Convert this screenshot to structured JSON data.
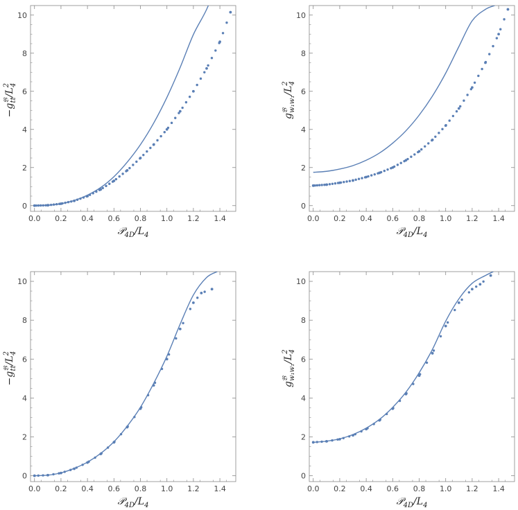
{
  "colors": {
    "series": "#5a7fb5",
    "frame": "#888888",
    "text": "#333333"
  },
  "chart_data": [
    {
      "type": "scatter",
      "title": "",
      "xlabel": "𝒫_{4D}/L_4",
      "ylabel": "−g^{𝔅}_{tt}/L_4^2",
      "xlim": [
        -0.03,
        1.52
      ],
      "ylim": [
        -0.3,
        10.5
      ],
      "xticks": [
        "0.0",
        "0.2",
        "0.4",
        "0.6",
        "0.8",
        "1.0",
        "1.2",
        "1.4"
      ],
      "yticks": [
        "0",
        "2",
        "4",
        "6",
        "8",
        "10"
      ],
      "grid": false,
      "series": [
        {
          "kind": "line",
          "x": [
            0,
            0.1,
            0.2,
            0.3,
            0.4,
            0.5,
            0.6,
            0.7,
            0.8,
            0.9,
            1.0,
            1.1,
            1.2,
            1.3,
            1.4
          ],
          "y": [
            0,
            0.02,
            0.1,
            0.27,
            0.55,
            0.95,
            1.52,
            2.28,
            3.2,
            4.33,
            5.68,
            7.25,
            8.98,
            10.3,
            12.0
          ]
        },
        {
          "kind": "points",
          "x": [
            0,
            0.1,
            0.2,
            0.3,
            0.4,
            0.5,
            0.6,
            0.7,
            0.8,
            0.9,
            1.0,
            1.1,
            1.2,
            1.3,
            1.4,
            1.48
          ],
          "y": [
            0,
            0.02,
            0.1,
            0.25,
            0.5,
            0.85,
            1.3,
            1.85,
            2.5,
            3.2,
            4.0,
            4.95,
            6.0,
            7.2,
            8.6,
            10.15
          ]
        }
      ]
    },
    {
      "type": "scatter",
      "title": "",
      "xlabel": "𝒫_{4D}/L_4",
      "ylabel": "g^{𝔅}_{w_1w_1}/L_4^2",
      "xlim": [
        -0.03,
        1.52
      ],
      "ylim": [
        -0.3,
        10.5
      ],
      "xticks": [
        "0.0",
        "0.2",
        "0.4",
        "0.6",
        "0.8",
        "1.0",
        "1.2",
        "1.4"
      ],
      "yticks": [
        "0",
        "2",
        "4",
        "6",
        "8",
        "10"
      ],
      "grid": false,
      "series": [
        {
          "kind": "line",
          "x": [
            0,
            0.1,
            0.2,
            0.3,
            0.4,
            0.5,
            0.6,
            0.7,
            0.8,
            0.9,
            1.0,
            1.1,
            1.2,
            1.3,
            1.37
          ],
          "y": [
            1.75,
            1.8,
            1.92,
            2.1,
            2.38,
            2.76,
            3.28,
            3.93,
            4.75,
            5.75,
            6.95,
            8.35,
            9.7,
            10.3,
            10.5
          ]
        },
        {
          "kind": "points",
          "x": [
            0,
            0.1,
            0.2,
            0.3,
            0.4,
            0.5,
            0.6,
            0.7,
            0.8,
            0.9,
            1.0,
            1.1,
            1.2,
            1.3,
            1.4,
            1.47
          ],
          "y": [
            1.05,
            1.1,
            1.2,
            1.32,
            1.5,
            1.72,
            2.0,
            2.38,
            2.85,
            3.45,
            4.2,
            5.1,
            6.2,
            7.5,
            9.0,
            10.3
          ]
        }
      ]
    },
    {
      "type": "scatter",
      "title": "",
      "xlabel": "𝒫_{4D}/L_4",
      "ylabel": "−g^{𝔅}_{tt}/L_4^2",
      "xlim": [
        -0.03,
        1.52
      ],
      "ylim": [
        -0.3,
        10.5
      ],
      "xticks": [
        "0.0",
        "0.2",
        "0.4",
        "0.6",
        "0.8",
        "1.0",
        "1.2",
        "1.4"
      ],
      "yticks": [
        "0",
        "2",
        "4",
        "6",
        "8",
        "10"
      ],
      "grid": false,
      "series": [
        {
          "kind": "line",
          "x": [
            0,
            0.1,
            0.2,
            0.3,
            0.4,
            0.5,
            0.6,
            0.7,
            0.8,
            0.9,
            1.0,
            1.1,
            1.2,
            1.3,
            1.38
          ],
          "y": [
            0,
            0.03,
            0.15,
            0.38,
            0.7,
            1.15,
            1.75,
            2.55,
            3.52,
            4.75,
            6.15,
            7.8,
            9.3,
            10.2,
            10.5
          ]
        },
        {
          "kind": "points",
          "x": [
            0,
            0.1,
            0.2,
            0.3,
            0.4,
            0.5,
            0.6,
            0.7,
            0.8,
            0.9,
            1.0,
            1.1,
            1.2,
            1.26,
            1.34
          ],
          "y": [
            0,
            0.03,
            0.14,
            0.36,
            0.68,
            1.12,
            1.72,
            2.5,
            3.45,
            4.65,
            6.0,
            7.55,
            8.9,
            9.4,
            9.6
          ]
        }
      ]
    },
    {
      "type": "scatter",
      "title": "",
      "xlabel": "𝒫_{4D}/L_4",
      "ylabel": "g^{𝔅}_{w_1w_1}/L_4^2",
      "xlim": [
        -0.03,
        1.52
      ],
      "ylim": [
        -0.3,
        10.5
      ],
      "xticks": [
        "0.0",
        "0.2",
        "0.4",
        "0.6",
        "0.8",
        "1.0",
        "1.2",
        "1.4"
      ],
      "yticks": [
        "0",
        "2",
        "4",
        "6",
        "8",
        "10"
      ],
      "grid": false,
      "series": [
        {
          "kind": "line",
          "x": [
            0,
            0.1,
            0.2,
            0.3,
            0.4,
            0.5,
            0.6,
            0.7,
            0.8,
            0.9,
            1.0,
            1.1,
            1.2,
            1.3,
            1.36
          ],
          "y": [
            1.72,
            1.78,
            1.9,
            2.12,
            2.45,
            2.9,
            3.52,
            4.3,
            5.3,
            6.5,
            7.95,
            9.1,
            9.9,
            10.3,
            10.5
          ]
        },
        {
          "kind": "points",
          "x": [
            0,
            0.1,
            0.2,
            0.3,
            0.4,
            0.5,
            0.6,
            0.7,
            0.8,
            0.9,
            1.0,
            1.1,
            1.2,
            1.26,
            1.34
          ],
          "y": [
            1.72,
            1.77,
            1.88,
            2.08,
            2.4,
            2.85,
            3.45,
            4.2,
            5.15,
            6.3,
            7.7,
            8.9,
            9.6,
            9.85,
            10.3
          ]
        }
      ]
    }
  ]
}
